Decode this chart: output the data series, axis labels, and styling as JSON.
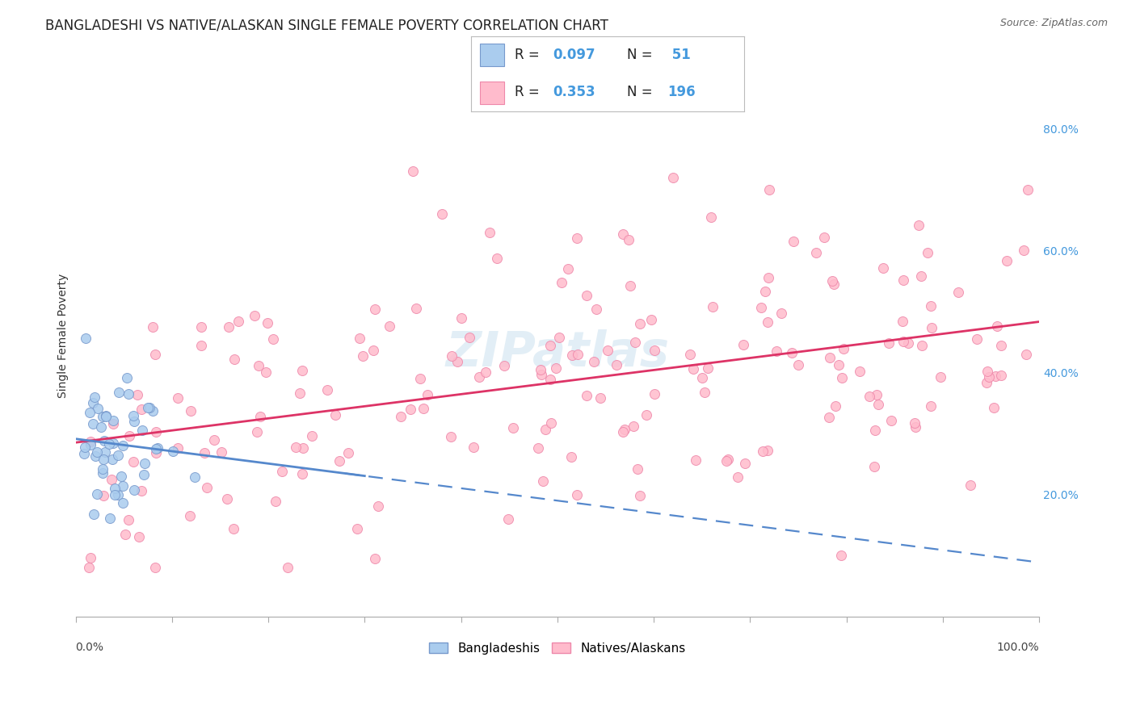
{
  "title": "BANGLADESHI VS NATIVE/ALASKAN SINGLE FEMALE POVERTY CORRELATION CHART",
  "source": "Source: ZipAtlas.com",
  "ylabel": "Single Female Poverty",
  "background_color": "#ffffff",
  "grid_color": "#cccccc",
  "blue_dot_face": "#aaccee",
  "blue_dot_edge": "#7799cc",
  "pink_dot_face": "#ffbbcc",
  "pink_dot_edge": "#ee88aa",
  "trend_blue_color": "#5588cc",
  "trend_pink_color": "#dd3366",
  "right_ytick_color": "#4499dd",
  "legend_r_color": "#000000",
  "legend_n_color": "#4499dd",
  "label_blue": "Bangladeshis",
  "label_pink": "Natives/Alaskans",
  "n_blue": 51,
  "n_pink": 196,
  "r_blue": 0.097,
  "r_pink": 0.353,
  "title_fontsize": 12,
  "source_fontsize": 9,
  "axis_label_fontsize": 10,
  "tick_label_fontsize": 10,
  "legend_fontsize": 12,
  "watermark_color": "#d0e4f0",
  "watermark_alpha": 0.6
}
